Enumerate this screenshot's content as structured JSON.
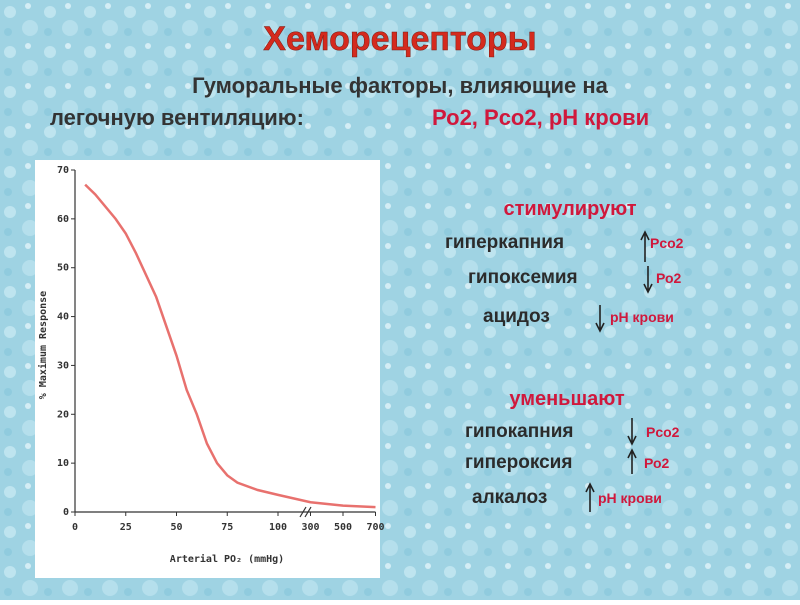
{
  "title": "Хеморецепторы",
  "subtitle": {
    "line1": "Гуморальные факторы, влияющие на",
    "line2": "легочную вентиляцию:",
    "factors": "Ро2, Рсо2, рН крови"
  },
  "stimulate": {
    "heading": "стимулируют",
    "items": [
      {
        "label": "гиперкапния",
        "param": "Рсо2"
      },
      {
        "label": "гипоксемия",
        "param": "Ро2"
      },
      {
        "label": "ацидоз",
        "param": "рН крови"
      }
    ]
  },
  "decrease": {
    "heading": "уменьшают",
    "items": [
      {
        "label": "гипокапния",
        "param": "Рсо2"
      },
      {
        "label": "гипероксия",
        "param": "Ро2"
      },
      {
        "label": "алкалоз",
        "param": "рН крови"
      }
    ]
  },
  "chart_data": {
    "type": "line",
    "x_label": "Arterial PO₂ (mmHg)",
    "y_label": "% Maximum Response",
    "x": [
      5,
      10,
      20,
      25,
      30,
      40,
      50,
      55,
      60,
      65,
      70,
      75,
      80,
      90,
      100,
      300,
      500,
      700
    ],
    "series": [
      {
        "color": "#e8716e",
        "values": [
          67,
          65,
          60,
          57,
          53,
          44,
          32,
          25,
          20,
          14,
          10,
          7.5,
          6,
          4.5,
          3.5,
          2,
          1.3,
          1
        ]
      }
    ],
    "xlim": [
      0,
      700
    ],
    "ylim": [
      0,
      70
    ],
    "xticks": [
      0,
      25,
      50,
      75,
      100,
      300,
      500,
      700
    ],
    "yticks": [
      0,
      10,
      20,
      30,
      40,
      50,
      60,
      70
    ]
  }
}
